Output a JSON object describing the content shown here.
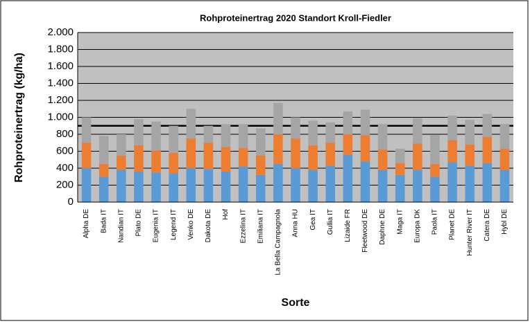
{
  "chart_data": {
    "type": "stacked_bar",
    "title": "Rohproteinertrag 2020 Standort Kroll-Fiedler",
    "y_label": "Rohproteinertrag (kg/ha)",
    "x_label": "Sorte",
    "categories": [
      "Alpha DE",
      "Bada IT",
      "Nandian IT",
      "Plato DE",
      "Eugenia IT",
      "Legend IT",
      "Venko DE",
      "Dakota DE",
      "Hof",
      "Ezzelina IT",
      "Emiliana IT",
      "La Bella Campagnola",
      "Anna HU",
      "Gea IT",
      "Gullia IT",
      "Lizaide FR",
      "Fleetwood DE",
      "Daphne DE",
      "Maga IT",
      "Europa DK",
      "Paola IT",
      "Planet DE",
      "Hunter River IT",
      "Catera DE",
      "Hybl DE"
    ],
    "series": [
      {
        "color": "#5b9bd5",
        "values": [
          400,
          300,
          380,
          360,
          350,
          340,
          400,
          390,
          360,
          420,
          320,
          450,
          400,
          380,
          430,
          560,
          480,
          380,
          320,
          380,
          300,
          470,
          430,
          460,
          380
        ]
      },
      {
        "color": "#ed7d31",
        "values": [
          300,
          150,
          170,
          310,
          260,
          240,
          350,
          310,
          290,
          220,
          230,
          350,
          350,
          290,
          270,
          240,
          310,
          240,
          140,
          310,
          150,
          260,
          250,
          310,
          250
        ]
      },
      {
        "color": "#a5a5a5",
        "values": [
          300,
          330,
          250,
          310,
          340,
          320,
          350,
          200,
          270,
          280,
          320,
          370,
          250,
          290,
          240,
          270,
          300,
          300,
          170,
          300,
          340,
          290,
          290,
          270,
          290
        ]
      }
    ],
    "ylim": [
      0,
      2000
    ],
    "yticks": [
      0,
      200,
      400,
      600,
      800,
      {
        "value": 1000,
        "label": "1.000"
      },
      {
        "value": 1200,
        "label": "1.200"
      },
      {
        "value": 1400,
        "label": "1.400"
      },
      {
        "value": 1600,
        "label": "1.600"
      },
      {
        "value": 1800,
        "label": "1.800"
      },
      {
        "value": 2000,
        "label": "2.000"
      }
    ],
    "reference_line": 900,
    "grid": true
  }
}
